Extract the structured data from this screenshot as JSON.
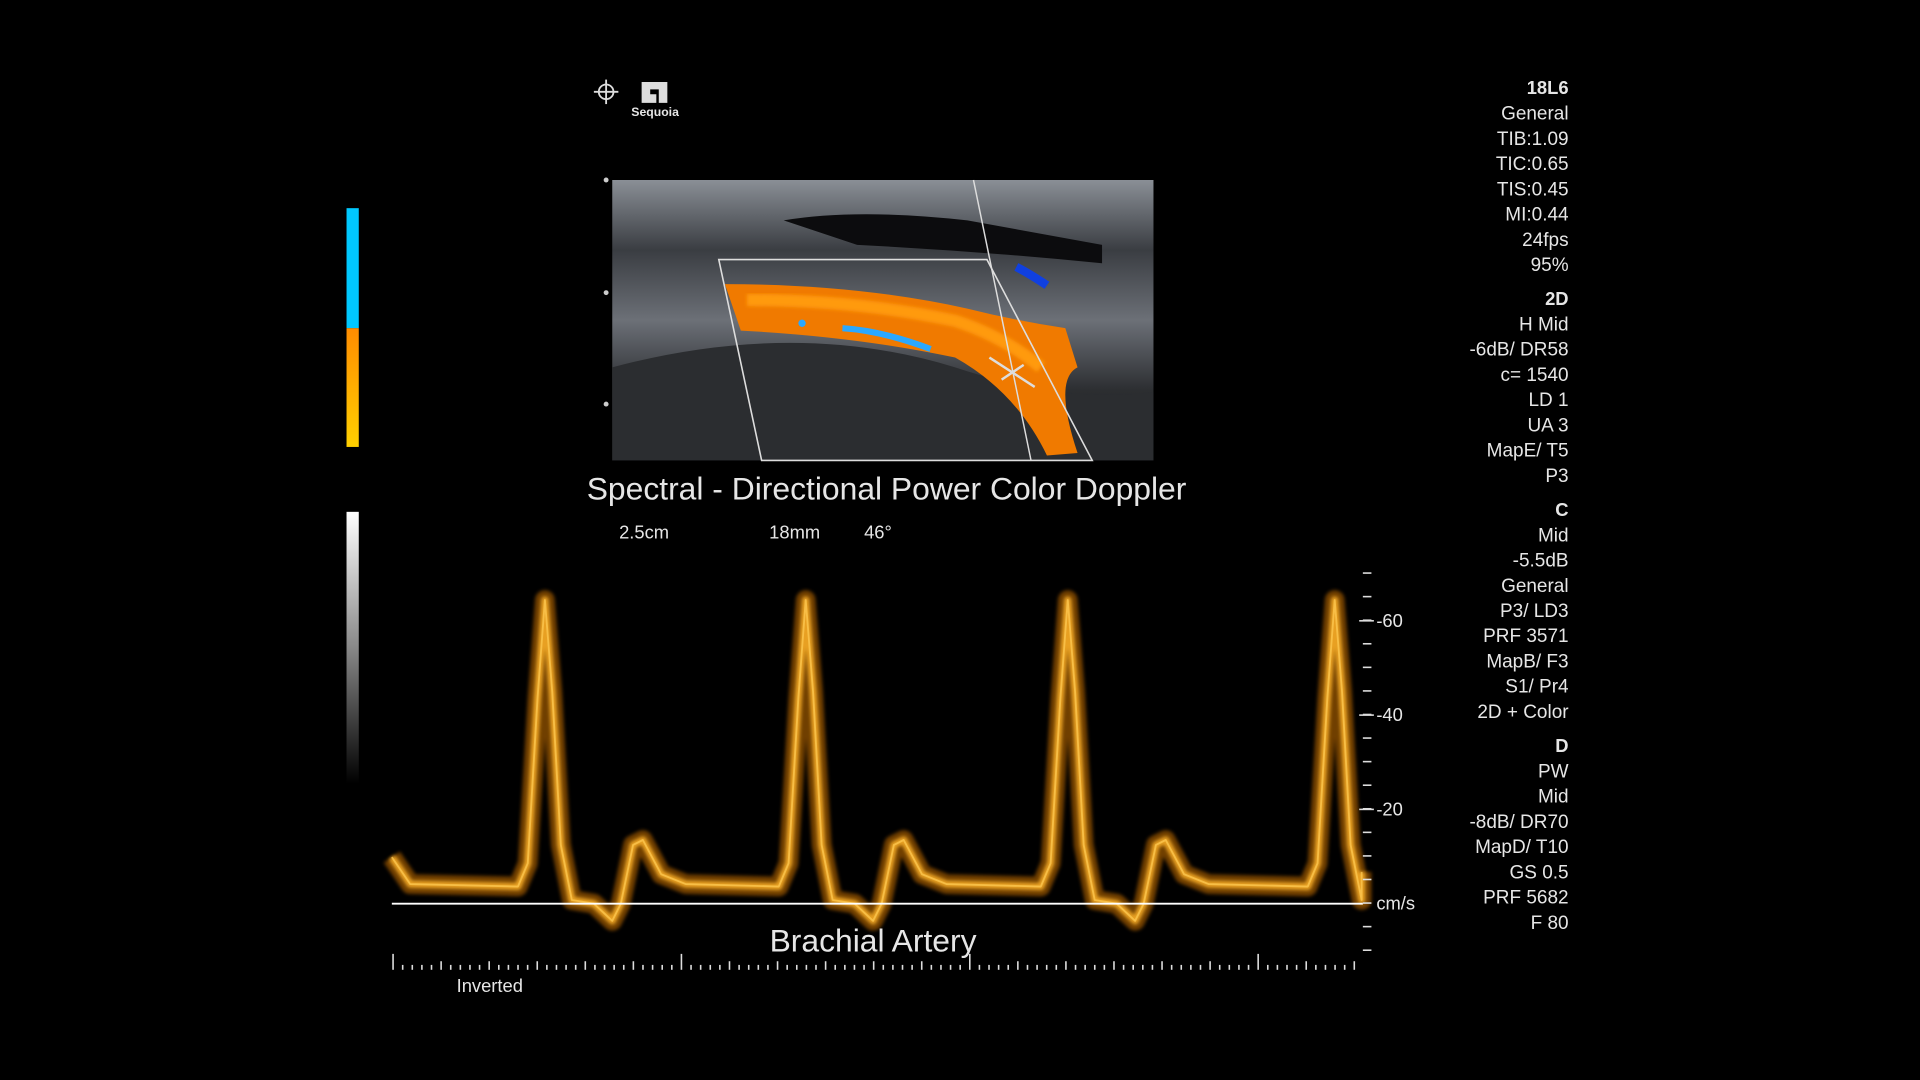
{
  "logo": {
    "brand": "Sequoia"
  },
  "image": {
    "title": "Spectral - Directional Power Color Doppler",
    "measurements": [
      "2.5cm",
      "18mm",
      "46°"
    ]
  },
  "spectral": {
    "scale_labels": [
      "-60",
      "-40",
      "-20"
    ],
    "unit": "cm/s",
    "label": "Brachial Artery",
    "mode": "Inverted"
  },
  "parameters": [
    {
      "heading": "18L6",
      "items": [
        "General",
        "TIB:1.09",
        "TIC:0.65",
        "TIS:0.45",
        "MI:0.44",
        "24fps",
        "95%"
      ]
    },
    {
      "heading": "2D",
      "items": [
        "H Mid",
        "-6dB/ DR58",
        "c= 1540",
        "LD 1",
        "UA 3",
        "MapE/ T5",
        "P3"
      ]
    },
    {
      "heading": "C",
      "items": [
        "Mid",
        "-5.5dB",
        "General",
        "P3/ LD3",
        "PRF 3571",
        "MapB/ F3",
        "S1/ Pr4",
        "2D + Color"
      ]
    },
    {
      "heading": "D",
      "items": [
        "PW",
        "Mid",
        "-8dB/ DR70",
        "MapD/ T10",
        "GS 0.5",
        "PRF 5682",
        "F 80"
      ]
    }
  ]
}
